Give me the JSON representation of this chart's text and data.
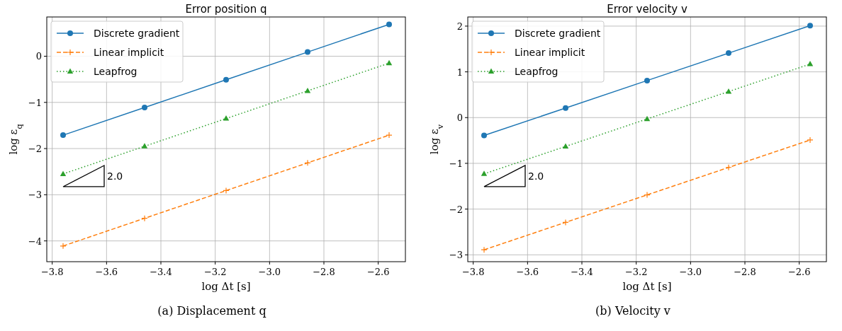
{
  "chart_data": [
    {
      "type": "line",
      "title": "Error position q",
      "xlabel": "log Δt [s]",
      "ylabel": "log ε$_{q}$",
      "x": [
        -3.76,
        -3.46,
        -3.16,
        -2.86,
        -2.56
      ],
      "xlim": [
        -3.82,
        -2.5
      ],
      "xticks": [
        {
          "value": -3.8,
          "label": "−3.8"
        },
        {
          "value": -3.6,
          "label": "−3.6"
        },
        {
          "value": -3.4,
          "label": "−3.4"
        },
        {
          "value": -3.2,
          "label": "−3.2"
        },
        {
          "value": -3.0,
          "label": "−3.0"
        },
        {
          "value": -2.8,
          "label": "−2.8"
        },
        {
          "value": -2.6,
          "label": "−2.6"
        }
      ],
      "ylim": [
        -4.45,
        0.85
      ],
      "yticks": [
        {
          "value": -4,
          "label": "−4"
        },
        {
          "value": -3,
          "label": "−3"
        },
        {
          "value": -2,
          "label": "−2"
        },
        {
          "value": -1,
          "label": "−1"
        },
        0
      ],
      "grid": true,
      "legend": "top left",
      "series": [
        {
          "name": "Discrete gradient",
          "color": "#1f77b4",
          "marker": "circle",
          "line_style": "solid",
          "values": [
            -1.71,
            -1.11,
            -0.51,
            0.09,
            0.69
          ]
        },
        {
          "name": "Linear implicit",
          "color": "#ff7f0e",
          "marker": "cross",
          "line_style": "dashed",
          "values": [
            -4.11,
            -3.51,
            -2.91,
            -2.31,
            -1.71
          ]
        },
        {
          "name": "Leapfrog",
          "color": "#2ca02c",
          "marker": "triangle",
          "line_style": "dotted",
          "values": [
            -2.55,
            -1.95,
            -1.35,
            -0.75,
            -0.15
          ]
        }
      ],
      "annotations": [
        "2.0",
        "(a) Displacement q"
      ]
    },
    {
      "type": "line",
      "title": "Error velocity v",
      "xlabel": "log Δt [s]",
      "ylabel": "log ε$_{v}$",
      "x": [
        -3.76,
        -3.46,
        -3.16,
        -2.86,
        -2.56
      ],
      "xlim": [
        -3.82,
        -2.5
      ],
      "xticks": [
        {
          "value": -3.8,
          "label": "−3.8"
        },
        {
          "value": -3.6,
          "label": "−3.6"
        },
        {
          "value": -3.4,
          "label": "−3.4"
        },
        {
          "value": -3.2,
          "label": "−3.2"
        },
        {
          "value": -3.0,
          "label": "−3.0"
        },
        {
          "value": -2.8,
          "label": "−2.8"
        },
        {
          "value": -2.6,
          "label": "−2.6"
        }
      ],
      "ylim": [
        -3.15,
        2.2
      ],
      "yticks": [
        {
          "value": -3,
          "label": "−3"
        },
        {
          "value": -2,
          "label": "−2"
        },
        {
          "value": -1,
          "label": "−1"
        },
        0,
        1,
        2
      ],
      "grid": true,
      "legend": "top left",
      "series": [
        {
          "name": "Discrete gradient",
          "color": "#1f77b4",
          "marker": "circle",
          "line_style": "solid",
          "values": [
            -0.39,
            0.21,
            0.81,
            1.41,
            2.01
          ]
        },
        {
          "name": "Linear implicit",
          "color": "#ff7f0e",
          "marker": "cross",
          "line_style": "dashed",
          "values": [
            -2.89,
            -2.29,
            -1.69,
            -1.09,
            -0.49
          ]
        },
        {
          "name": "Leapfrog",
          "color": "#2ca02c",
          "marker": "triangle",
          "line_style": "dotted",
          "values": [
            -1.23,
            -0.63,
            -0.03,
            0.57,
            1.17
          ]
        }
      ],
      "annotations": [
        "2.0",
        "(b) Velocity v"
      ]
    }
  ]
}
